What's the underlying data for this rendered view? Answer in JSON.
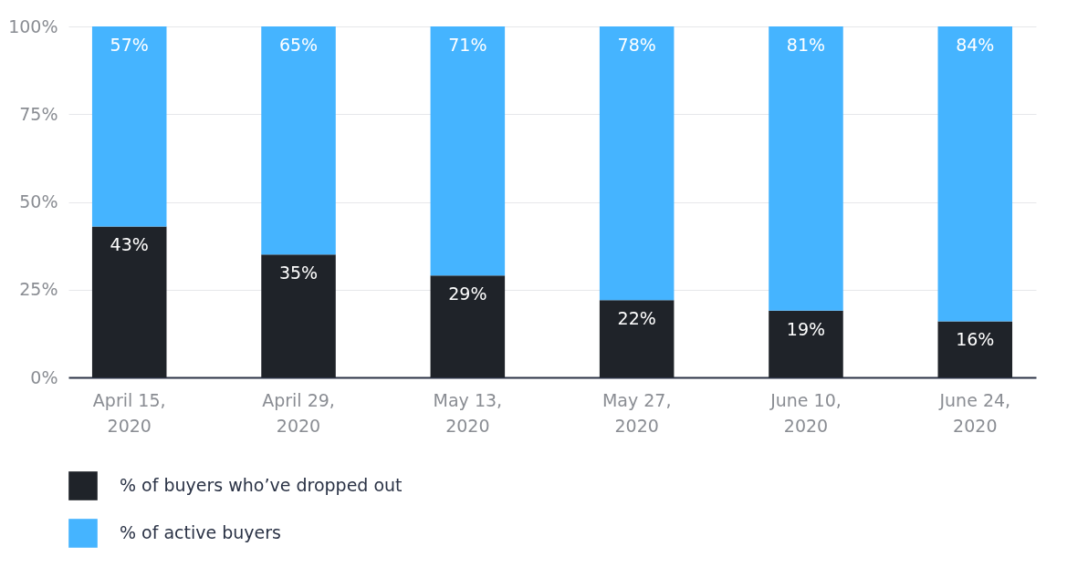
{
  "chart_data": {
    "type": "bar",
    "stacked": true,
    "categories": [
      "April 15, 2020",
      "April 29, 2020",
      "May 13, 2020",
      "May 27, 2020",
      "June 10, 2020",
      "June 24, 2020"
    ],
    "series": [
      {
        "name": "% of buyers who’ve dropped out",
        "color": "#1f2329",
        "values": [
          43,
          35,
          29,
          22,
          19,
          16
        ],
        "value_labels": [
          "43%",
          "35%",
          "29%",
          "22%",
          "19%",
          "16%"
        ]
      },
      {
        "name": "% of active buyers",
        "color": "#45b4ff",
        "values": [
          57,
          65,
          71,
          78,
          81,
          84
        ],
        "value_labels": [
          "57%",
          "65%",
          "71%",
          "78%",
          "81%",
          "84%"
        ]
      }
    ],
    "ylim": [
      0,
      100
    ],
    "yticks": [
      {
        "value": 0,
        "label": "0%"
      },
      {
        "value": 25,
        "label": "25%"
      },
      {
        "value": 50,
        "label": "50%"
      },
      {
        "value": 75,
        "label": "75%"
      },
      {
        "value": 100,
        "label": "100%"
      }
    ],
    "grid": "y",
    "legend": "bottom left"
  }
}
